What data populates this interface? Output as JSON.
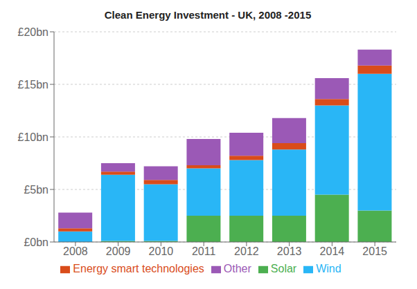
{
  "chart_data": {
    "type": "bar",
    "title": "Clean Energy Investment - UK, 2008 -2015",
    "stacked": true,
    "categories": [
      "2008",
      "2009",
      "2010",
      "2011",
      "2012",
      "2013",
      "2014",
      "2015"
    ],
    "series": [
      {
        "name": "Solar",
        "color": "#4caf50",
        "values": [
          0.0,
          0.1,
          0.1,
          2.5,
          2.5,
          2.5,
          4.5,
          3.0
        ]
      },
      {
        "name": "Wind",
        "color": "#29b6f6",
        "values": [
          1.0,
          6.3,
          5.4,
          4.5,
          5.3,
          6.3,
          8.5,
          13.0
        ]
      },
      {
        "name": "Energy smart technologies",
        "color": "#d94c1a",
        "values": [
          0.3,
          0.3,
          0.4,
          0.3,
          0.4,
          0.6,
          0.6,
          0.8
        ]
      },
      {
        "name": "Other",
        "color": "#9b59b6",
        "values": [
          1.5,
          0.8,
          1.3,
          2.5,
          2.2,
          2.4,
          2.0,
          1.5
        ]
      }
    ],
    "ylim": [
      0,
      20
    ],
    "yticks": [
      {
        "value": 0,
        "label": "£0bn"
      },
      {
        "value": 5,
        "label": "£5bn"
      },
      {
        "value": 10,
        "label": "£10bn"
      },
      {
        "value": 15,
        "label": "£15bn"
      },
      {
        "value": 20,
        "label": "£20bn"
      }
    ],
    "grid": true,
    "legend": "bottom"
  }
}
